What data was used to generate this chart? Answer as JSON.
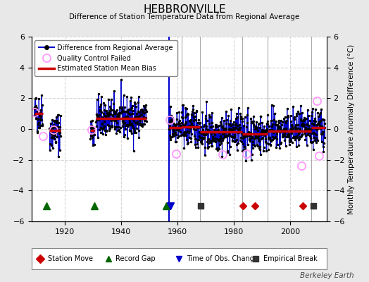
{
  "title": "HEBBRONVILLE",
  "subtitle": "Difference of Station Temperature Data from Regional Average",
  "ylabel": "Monthly Temperature Anomaly Difference (°C)",
  "xlim": [
    1908,
    2013
  ],
  "ylim": [
    -6,
    6
  ],
  "yticks": [
    -6,
    -4,
    -2,
    0,
    2,
    4,
    6
  ],
  "xticks": [
    1920,
    1940,
    1960,
    1980,
    2000
  ],
  "bg_color": "#e8e8e8",
  "plot_bg_color": "#ffffff",
  "grid_color": "#cccccc",
  "segments": [
    {
      "x_start": 1909.0,
      "x_end": 1912.0,
      "bias": 1.0
    },
    {
      "x_start": 1914.5,
      "x_end": 1918.5,
      "bias": -0.1
    },
    {
      "x_start": 1929.0,
      "x_end": 1930.5,
      "bias": -0.1
    },
    {
      "x_start": 1931.0,
      "x_end": 1949.0,
      "bias": 0.7
    },
    {
      "x_start": 1957.0,
      "x_end": 1961.5,
      "bias": 0.1
    },
    {
      "x_start": 1961.5,
      "x_end": 1968.0,
      "bias": 0.15
    },
    {
      "x_start": 1968.0,
      "x_end": 1983.0,
      "bias": -0.2
    },
    {
      "x_start": 1983.0,
      "x_end": 1992.0,
      "bias": -0.3
    },
    {
      "x_start": 1992.0,
      "x_end": 2007.5,
      "bias": -0.15
    },
    {
      "x_start": 2007.5,
      "x_end": 2012.5,
      "bias": 0.1
    }
  ],
  "vertical_lines": [
    {
      "x": 1961.5,
      "color": "#aaaaaa"
    },
    {
      "x": 1968.0,
      "color": "#aaaaaa"
    },
    {
      "x": 1983.0,
      "color": "#aaaaaa"
    },
    {
      "x": 1992.0,
      "color": "#aaaaaa"
    },
    {
      "x": 2007.5,
      "color": "#aaaaaa"
    }
  ],
  "blue_vline": 1957.0,
  "record_gaps": [
    1913.5,
    1930.3,
    1956.0
  ],
  "station_moves": [
    1983.3,
    1987.5,
    2004.5
  ],
  "time_obs_changes": [
    1957.5
  ],
  "empirical_breaks": [
    1968.3,
    2008.3
  ],
  "qc_failed_approx": [
    [
      1909.0,
      1.1
    ],
    [
      1912.0,
      -0.45
    ],
    [
      1916.0,
      -0.05
    ],
    [
      1929.5,
      -0.05
    ],
    [
      1957.3,
      0.6
    ],
    [
      1959.5,
      -1.6
    ],
    [
      1976.0,
      -1.65
    ],
    [
      1984.5,
      -1.6
    ],
    [
      2004.0,
      -2.4
    ],
    [
      2009.5,
      1.85
    ],
    [
      2010.2,
      -1.75
    ]
  ],
  "data_color": "#0000cc",
  "dot_color": "#000000",
  "bias_color": "#cc0000",
  "qc_color": "#ff99ff",
  "station_move_color": "#cc0000",
  "record_gap_color": "#006600",
  "time_obs_color": "#0000cc",
  "empirical_break_color": "#333333",
  "watermark": "Berkeley Earth",
  "legend1_items": [
    "Difference from Regional Average",
    "Quality Control Failed",
    "Estimated Station Mean Bias"
  ]
}
